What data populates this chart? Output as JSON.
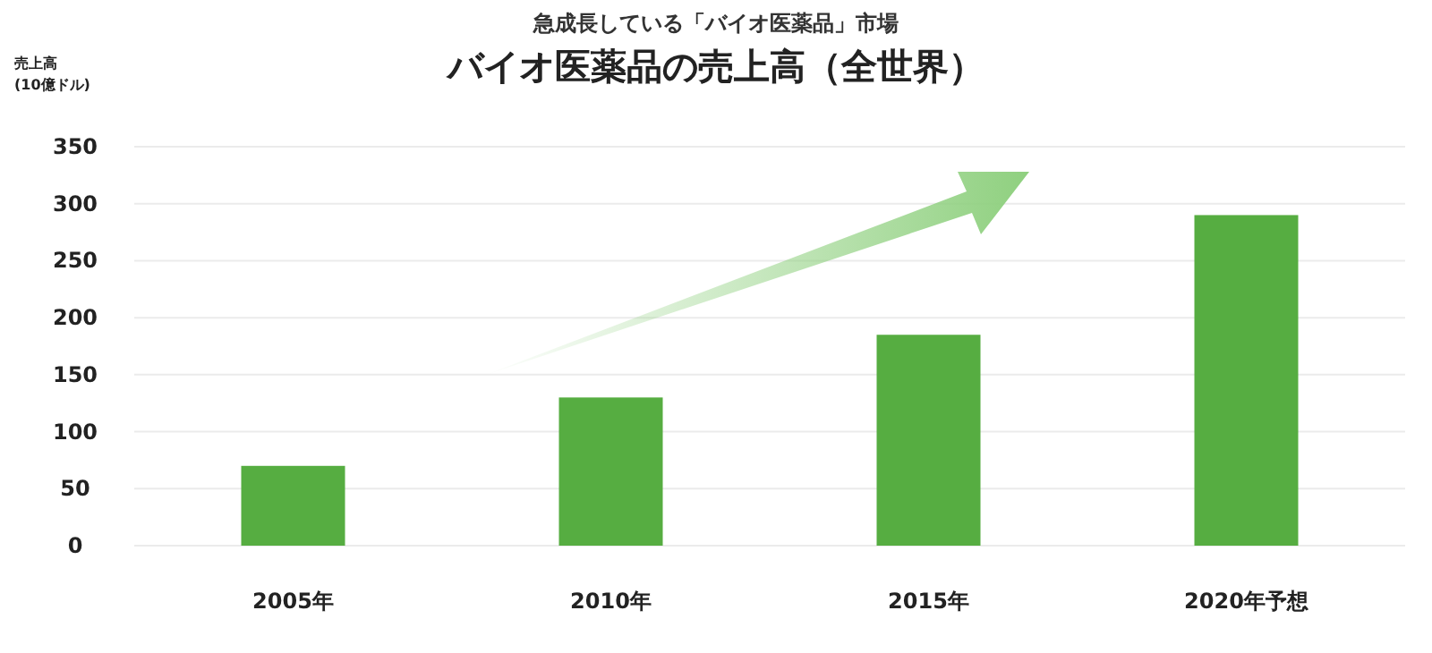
{
  "chart_data": {
    "type": "bar",
    "subtitle": "急成長している「バイオ医薬品」市場",
    "title": "バイオ医薬品の売上高（全世界）",
    "ylabel": "売上高\n(10億ドル)",
    "categories": [
      "2005年",
      "2010年",
      "2015年",
      "2020年予想"
    ],
    "series": [
      {
        "color": "#56ad41",
        "values": [
          70,
          130,
          185,
          290
        ]
      }
    ],
    "ylim": [
      0,
      350
    ],
    "yticks": [
      0,
      50,
      100,
      150,
      200,
      250,
      300,
      350
    ],
    "grid": "y"
  }
}
